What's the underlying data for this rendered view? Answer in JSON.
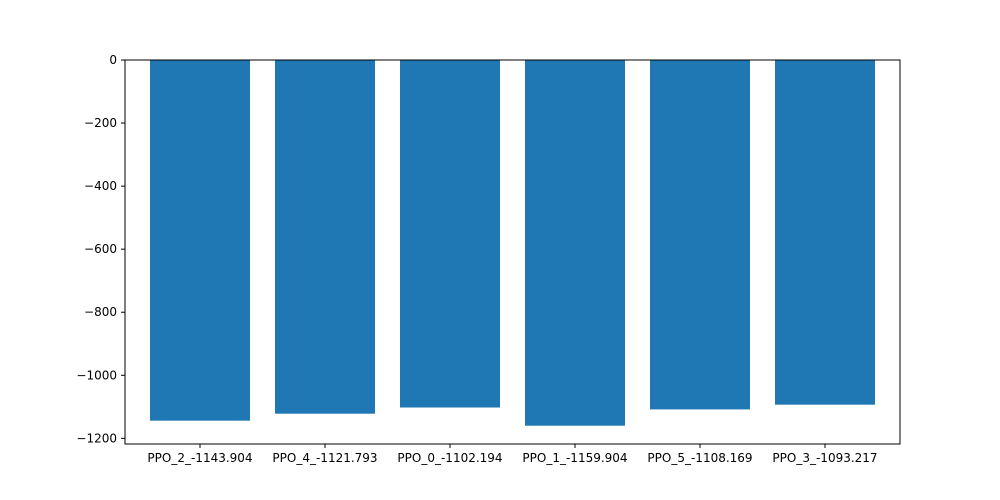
{
  "chart_data": {
    "type": "bar",
    "categories": [
      "PPO_2_-1143.904",
      "PPO_4_-1121.793",
      "PPO_0_-1102.194",
      "PPO_1_-1159.904",
      "PPO_5_-1108.169",
      "PPO_3_-1093.217"
    ],
    "values": [
      -1143.904,
      -1121.793,
      -1102.194,
      -1159.904,
      -1108.169,
      -1093.217
    ],
    "yticks": [
      0,
      -200,
      -400,
      -600,
      -800,
      -1000,
      -1200
    ],
    "ylim": [
      -1217.9,
      0
    ],
    "title": "",
    "xlabel": "",
    "ylabel": "",
    "grid": false,
    "bar_color": "#1f77b4"
  }
}
